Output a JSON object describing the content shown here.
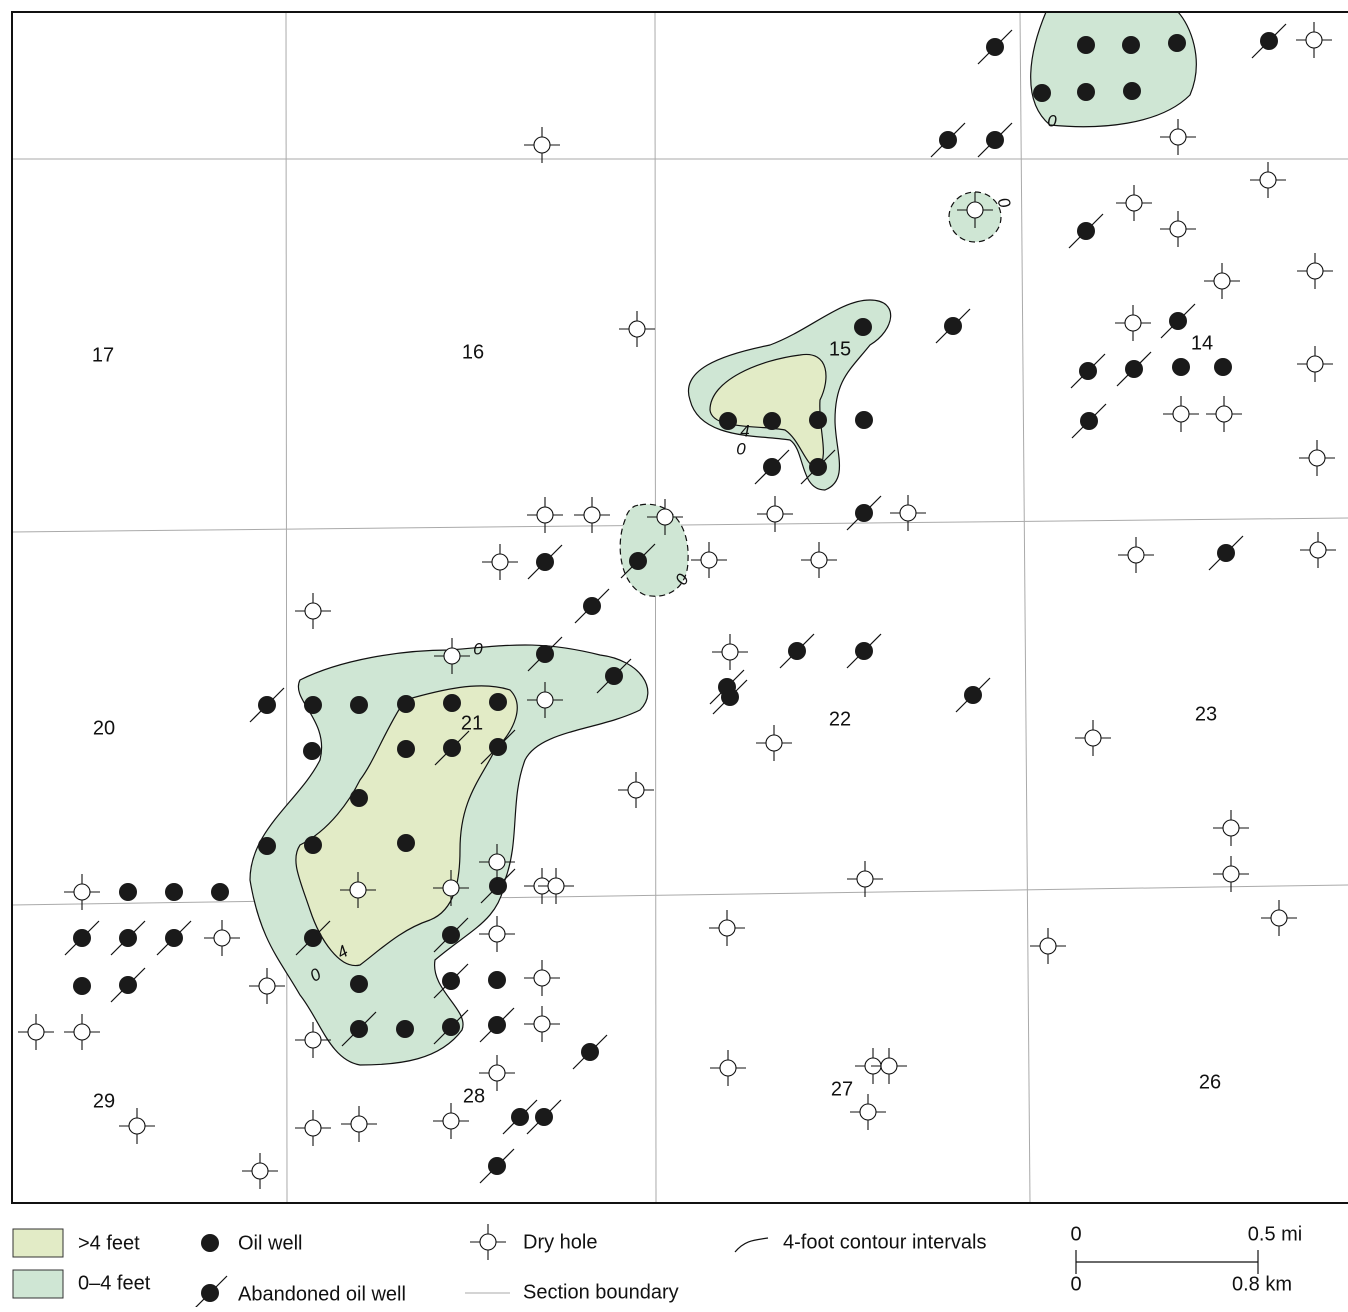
{
  "sections": [
    "17",
    "16",
    "15",
    "14",
    "20",
    "21",
    "22",
    "23",
    "29",
    "28",
    "27",
    "26"
  ],
  "contour_labels": [
    "0",
    "0",
    "4",
    "0",
    "0",
    "0",
    "4",
    "0"
  ],
  "legend": {
    "thick": ">4 feet",
    "thin": "0–4 feet",
    "oil": "Oil well",
    "abandoned": "Abandoned oil well",
    "dry": "Dry hole",
    "boundary": "Section boundary",
    "contour": "4-foot contour intervals"
  },
  "scale": {
    "mi_start": "0",
    "mi_end": "0.5 mi",
    "km_start": "0",
    "km_end": "0.8 km"
  }
}
